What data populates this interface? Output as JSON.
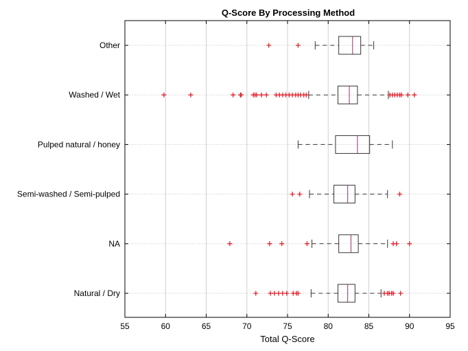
{
  "chart_data": {
    "type": "boxplot",
    "orientation": "horizontal",
    "title": "Q-Score By Processing Method",
    "xlabel": "Total Q-Score",
    "ylabel": "",
    "xlim": [
      55,
      95
    ],
    "xticks": [
      "55",
      "60",
      "65",
      "70",
      "75",
      "80",
      "85",
      "90",
      "95"
    ],
    "grid": true,
    "colors": {
      "box": "#333333",
      "median": "#9b2d6e",
      "outlier": "#e0202a",
      "grid": "#d0d0d0",
      "axes": "#000000"
    },
    "groups": [
      {
        "label": "Other",
        "whisker_low": 78.4,
        "q1": 81.3,
        "median": 83.0,
        "q3": 84.0,
        "whisker_high": 85.6,
        "outliers": [
          72.7,
          76.3
        ]
      },
      {
        "label": "Washed / Wet",
        "whisker_low": 77.6,
        "q1": 81.2,
        "median": 82.6,
        "q3": 83.6,
        "whisker_high": 87.4,
        "outliers": [
          59.8,
          63.1,
          68.3,
          69.2,
          69.3,
          70.8,
          71.0,
          71.2,
          71.8,
          72.4,
          73.6,
          74.0,
          74.4,
          74.8,
          75.2,
          75.6,
          76.0,
          76.3,
          76.6,
          77.0,
          77.3,
          87.6,
          87.9,
          88.2,
          88.5,
          88.8,
          89.0,
          89.8,
          90.6
        ]
      },
      {
        "label": "Pulped natural / honey",
        "whisker_low": 76.3,
        "q1": 80.9,
        "median": 83.6,
        "q3": 85.1,
        "whisker_high": 87.9,
        "outliers": []
      },
      {
        "label": "Semi-washed / Semi-pulped",
        "whisker_low": 77.7,
        "q1": 80.7,
        "median": 82.4,
        "q3": 83.3,
        "whisker_high": 87.3,
        "outliers": [
          75.6,
          76.5,
          88.8
        ]
      },
      {
        "label": "NA",
        "whisker_low": 78.0,
        "q1": 81.3,
        "median": 82.8,
        "q3": 83.7,
        "whisker_high": 87.3,
        "outliers": [
          67.9,
          72.8,
          74.3,
          77.4,
          88.0,
          88.4,
          90.0
        ]
      },
      {
        "label": "Natural / Dry",
        "whisker_low": 77.9,
        "q1": 81.2,
        "median": 82.4,
        "q3": 83.3,
        "whisker_high": 86.5,
        "outliers": [
          71.1,
          72.9,
          73.4,
          73.9,
          74.4,
          74.9,
          75.7,
          76.1,
          76.3,
          86.9,
          87.3,
          87.5,
          87.8,
          88.0,
          88.9
        ]
      }
    ]
  }
}
